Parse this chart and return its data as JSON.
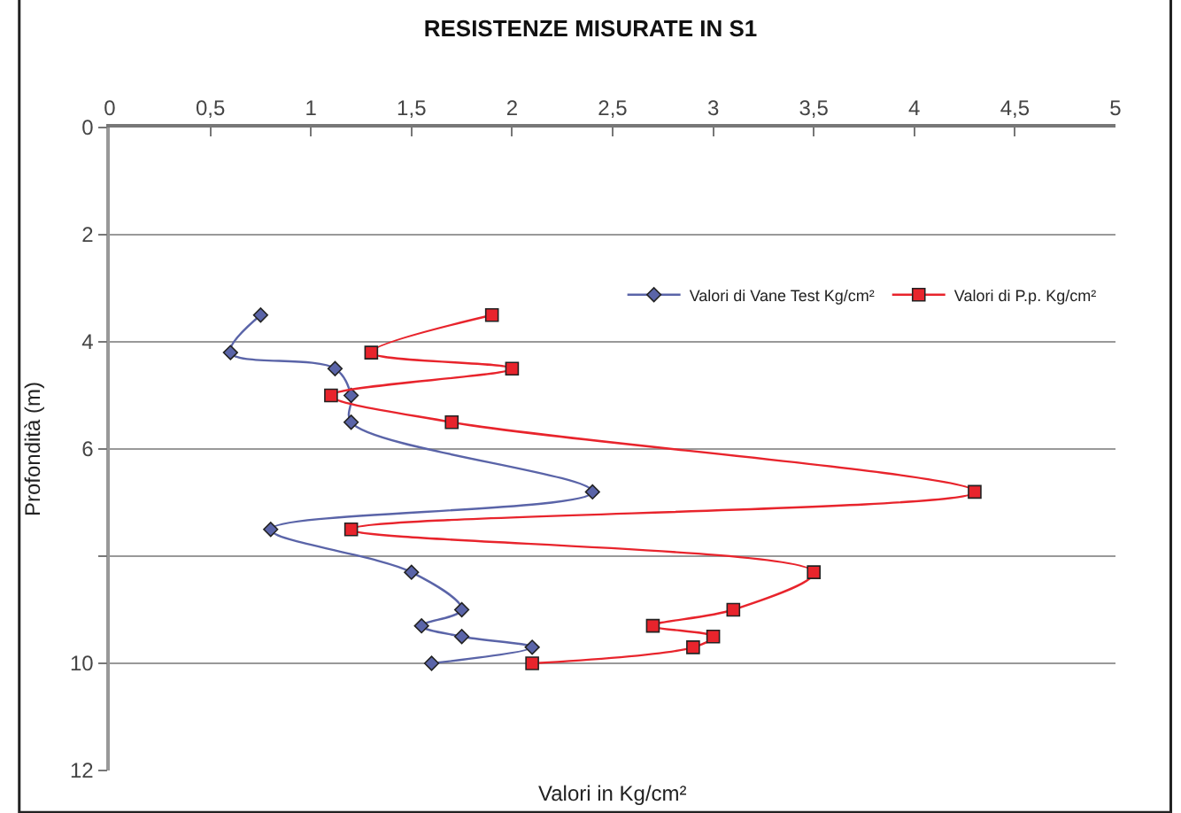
{
  "chart_data": {
    "type": "line",
    "title": "RESISTENZE MISURATE IN S1",
    "xlabel": "Valori in Kg/cm²",
    "ylabel": "Profondità (m)",
    "xlim": [
      0,
      5
    ],
    "xticks": [
      0,
      {
        "value": 0.5,
        "label": "0,5"
      },
      1,
      {
        "value": 1.5,
        "label": "1,5"
      },
      2,
      {
        "value": 2.5,
        "label": "2,5"
      },
      3,
      {
        "value": 3.5,
        "label": "3,5"
      },
      4,
      {
        "value": 4.5,
        "label": "4,5"
      },
      5
    ],
    "ylim": [
      12,
      0
    ],
    "yticks": [
      0,
      2,
      4,
      6,
      {
        "value": 8,
        "label": null
      },
      10,
      12
    ],
    "grid": "y",
    "legend": "right",
    "series": [
      {
        "name": "Valori di Vane Test Kg/cm²",
        "color": "#5a64a8",
        "marker": "diamond",
        "x": [
          0.75,
          0.6,
          1.12,
          1.2,
          1.2,
          2.4,
          0.8,
          1.5,
          1.75,
          1.55,
          1.75,
          2.1,
          1.6
        ],
        "values": [
          3.5,
          4.2,
          4.5,
          5.0,
          5.5,
          6.8,
          7.5,
          8.3,
          9.0,
          9.3,
          9.5,
          9.7,
          10.0
        ]
      },
      {
        "name": "Valori di P.p. Kg/cm²",
        "color": "#e8242c",
        "marker": "square",
        "x": [
          1.9,
          1.3,
          2.0,
          1.1,
          1.7,
          4.3,
          1.2,
          3.5,
          3.1,
          2.7,
          3.0,
          2.9,
          2.1
        ],
        "values": [
          3.5,
          4.2,
          4.5,
          5.0,
          5.5,
          6.8,
          7.5,
          8.3,
          9.0,
          9.3,
          9.5,
          9.7,
          10.0
        ]
      }
    ]
  }
}
